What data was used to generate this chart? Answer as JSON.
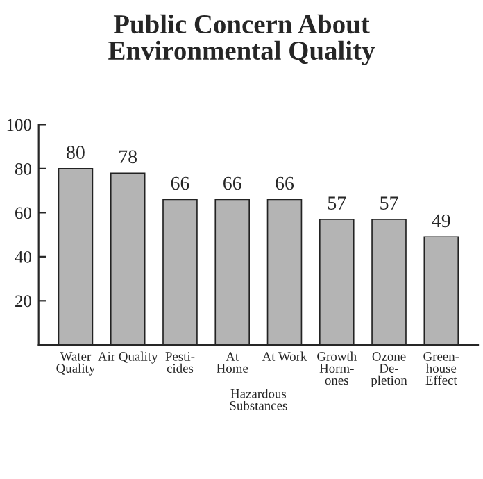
{
  "chart_data": {
    "type": "bar",
    "title": "Public Concern About\nEnvironmental Quality",
    "categories": [
      "Water\nQuality",
      "Air Quality",
      "Pesti-\ncides",
      "At\nHome",
      "At Work",
      "Growth\nHorm-\nones",
      "Ozone\nDe-\npletion",
      "Green-\nhouse\nEffect"
    ],
    "values": [
      80,
      78,
      66,
      66,
      66,
      57,
      57,
      49
    ],
    "color": "#b4b4b4",
    "ylim": [
      0,
      100
    ],
    "yticks": [
      20,
      40,
      60,
      80,
      100
    ],
    "data_labels": true,
    "grid": false,
    "annotations": [
      "Hazardous\nSubstances"
    ]
  }
}
